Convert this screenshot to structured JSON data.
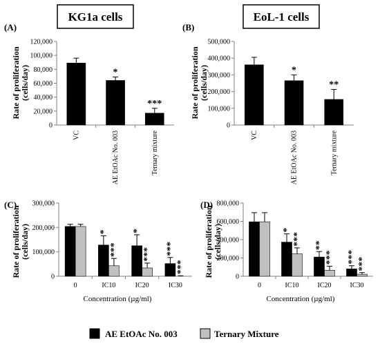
{
  "titles": {
    "a": "KG1a cells",
    "b": "EoL-1 cells"
  },
  "legend": {
    "series1": "AE EtOAc No. 003",
    "series2": "Ternary Mixture"
  },
  "colors": {
    "series1": "#000000",
    "series2": "#c0c0c0",
    "axis": "#7f7f7f",
    "error": "#000000"
  },
  "chart_data": [
    {
      "panel": "(A)",
      "type": "bar",
      "title": "KG1a cells",
      "ylabel": "Rate of proliferation (cells/day)",
      "ylim": [
        0,
        120000
      ],
      "yticks": [
        "0",
        "20,000",
        "40,000",
        "60,000",
        "80,000",
        "100,000",
        "120,000"
      ],
      "categories": [
        "VC",
        "AE EtOAc No. 003",
        "Ternary mixture"
      ],
      "series": [
        {
          "values": [
            89000,
            64000,
            17000
          ],
          "errors": [
            7000,
            5000,
            7000
          ],
          "significance": [
            "",
            "*",
            "***"
          ]
        }
      ]
    },
    {
      "panel": "(B)",
      "type": "bar",
      "title": "EoL-1 cells",
      "ylabel": "Rate of proliferation (cells/day)",
      "ylim": [
        0,
        500000
      ],
      "yticks": [
        "0",
        "100,000",
        "200,000",
        "300,000",
        "400,000",
        "500,000"
      ],
      "categories": [
        "VC",
        "AE EtOAc No. 003",
        "Ternary mixture"
      ],
      "series": [
        {
          "values": [
            360000,
            265000,
            153000
          ],
          "errors": [
            45000,
            35000,
            60000
          ],
          "significance": [
            "",
            "*",
            "**"
          ]
        }
      ]
    },
    {
      "panel": "(C)",
      "type": "bar",
      "ylabel": "Rate of proliferation (cells/day)",
      "xlabel": "Concentration (µg/ml)",
      "ylim": [
        0,
        300000
      ],
      "yticks": [
        "0",
        "100,000",
        "200,000",
        "300,000"
      ],
      "categories": [
        "0",
        "IC10",
        "IC20",
        "IC30"
      ],
      "series": [
        {
          "name": "AE EtOAc No. 003",
          "values": [
            204000,
            128000,
            125000,
            52000
          ],
          "errors": [
            9000,
            38000,
            45000,
            25000
          ],
          "significance": [
            "",
            "*",
            "*",
            "***"
          ]
        },
        {
          "name": "Ternary Mixture",
          "values": [
            204000,
            43000,
            34000,
            0
          ],
          "errors": [
            9000,
            30000,
            20000,
            2000
          ],
          "significance": [
            "",
            "***",
            "***",
            "***"
          ]
        }
      ]
    },
    {
      "panel": "(D)",
      "type": "bar",
      "ylabel": "Rate of proliferation (cells/day)",
      "xlabel": "Concentration (µg/ml)",
      "ylim": [
        0,
        800000
      ],
      "yticks": [
        "0",
        "200,000",
        "400,000",
        "600,000",
        "800,000"
      ],
      "categories": [
        "0",
        "IC10",
        "IC20",
        "IC30"
      ],
      "series": [
        {
          "name": "AE EtOAc No. 003",
          "values": [
            595000,
            373000,
            210000,
            80000
          ],
          "errors": [
            100000,
            90000,
            60000,
            35000
          ],
          "significance": [
            "",
            "*",
            "**",
            "***"
          ]
        },
        {
          "name": "Ternary Mixture",
          "values": [
            595000,
            245000,
            65000,
            22000
          ],
          "errors": [
            100000,
            65000,
            45000,
            18000
          ],
          "significance": [
            "",
            "***",
            "***",
            "***"
          ]
        }
      ]
    }
  ]
}
